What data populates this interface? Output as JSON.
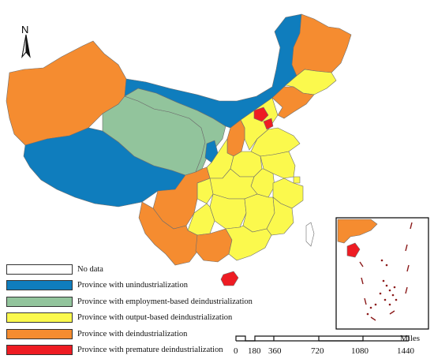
{
  "north_arrow": {
    "label": "N"
  },
  "colors": {
    "no_data": "#ffffff",
    "unindustrialization": "#0f7dbd",
    "employment_based": "#92c49c",
    "output_based": "#fbf94d",
    "deindustrialization": "#f58c30",
    "premature": "#ee1c23",
    "border": "#6e6e6e"
  },
  "legend": {
    "items": [
      {
        "label": "No data",
        "category": "no_data"
      },
      {
        "label": "Province with unindustrialization",
        "category": "unindustrialization"
      },
      {
        "label": "Province with employment-based deindustrialization",
        "category": "employment_based"
      },
      {
        "label": "Province with output-based deindustrialization",
        "category": "output_based"
      },
      {
        "label": "Province with deindustrialization",
        "category": "deindustrialization"
      },
      {
        "label": "Province with premature deindustrialization",
        "category": "premature"
      }
    ]
  },
  "scale_bar": {
    "ticks": [
      "0",
      "180",
      "360",
      "720",
      "1080",
      "1440"
    ],
    "unit": "Miles"
  }
}
